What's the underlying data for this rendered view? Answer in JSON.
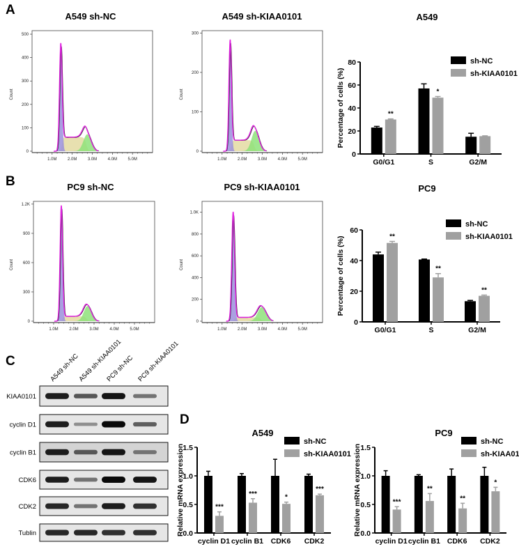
{
  "panel_labels": {
    "a": "A",
    "b": "B",
    "c": "C",
    "d": "D"
  },
  "colors": {
    "sh_nc": "#000000",
    "sh_kiaa0101": "#a0a0a0",
    "hist_outline": "#e020e0",
    "g1_fill": "#9b90dc",
    "s_fill": "#e4dba2",
    "g2_fill": "#8ee27a"
  },
  "chart_data": [
    {
      "id": "hist_a549_nc",
      "type": "area",
      "title": "A549 sh-NC",
      "ylabel": "Count",
      "xlim": [
        0,
        6
      ],
      "ylim": [
        0,
        515
      ],
      "xticks": [
        {
          "v": 1,
          "label": "1.0M"
        },
        {
          "v": 2,
          "label": "2.0M"
        },
        {
          "v": 3,
          "label": "3.0M"
        },
        {
          "v": 4,
          "label": "4.0M"
        },
        {
          "v": 5,
          "label": "5.0M"
        }
      ],
      "yticks": [
        {
          "v": 0,
          "label": "0"
        },
        {
          "v": 100,
          "label": "100"
        },
        {
          "v": 200,
          "label": "200"
        },
        {
          "v": 300,
          "label": "300"
        },
        {
          "v": 400,
          "label": "400"
        },
        {
          "v": 500,
          "label": "500"
        }
      ],
      "g1_peak": {
        "x": 1.43,
        "count": 455
      },
      "g2_peak": {
        "x": 2.75,
        "count": 90
      },
      "s_phase_count": 60
    },
    {
      "id": "hist_a549_kd",
      "type": "area",
      "title": "A549 sh-KIAA0101",
      "ylabel": "Count",
      "xlim": [
        0,
        6
      ],
      "ylim": [
        0,
        306
      ],
      "xticks": [
        {
          "v": 1,
          "label": "1.0M"
        },
        {
          "v": 2,
          "label": "2.0M"
        },
        {
          "v": 3,
          "label": "3.0M"
        },
        {
          "v": 4,
          "label": "4.0M"
        },
        {
          "v": 5,
          "label": "5.0M"
        }
      ],
      "yticks": [
        {
          "v": 0,
          "label": "0"
        },
        {
          "v": 100,
          "label": "100"
        },
        {
          "v": 200,
          "label": "200"
        },
        {
          "v": 300,
          "label": "300"
        }
      ],
      "g1_peak": {
        "x": 1.4,
        "count": 280
      },
      "g2_peak": {
        "x": 2.65,
        "count": 60
      },
      "s_phase_count": 28
    },
    {
      "id": "hist_pc9_nc",
      "type": "area",
      "title": "PC9 sh-NC",
      "ylabel": "Count",
      "xlim": [
        0,
        6
      ],
      "ylim": [
        0,
        1228
      ],
      "xticks": [
        {
          "v": 1,
          "label": "1.0M"
        },
        {
          "v": 2,
          "label": "2.0M"
        },
        {
          "v": 3,
          "label": "3.0M"
        },
        {
          "v": 4,
          "label": "4.0M"
        },
        {
          "v": 5,
          "label": "5.0M"
        }
      ],
      "yticks": [
        {
          "v": 0,
          "label": "0"
        },
        {
          "v": 300,
          "label": "300"
        },
        {
          "v": 600,
          "label": "600"
        },
        {
          "v": 900,
          "label": "900"
        },
        {
          "v": 1200,
          "label": "1.2K"
        }
      ],
      "g1_peak": {
        "x": 1.38,
        "count": 1180
      },
      "g2_peak": {
        "x": 2.68,
        "count": 170
      },
      "s_phase_count": 50
    },
    {
      "id": "hist_pc9_kd",
      "type": "area",
      "title": "PC9 sh-KIAA0101",
      "ylabel": "Count",
      "xlim": [
        0,
        6
      ],
      "ylim": [
        0,
        1100
      ],
      "xticks": [
        {
          "v": 1,
          "label": "1.0M"
        },
        {
          "v": 2,
          "label": "2.0M"
        },
        {
          "v": 3,
          "label": "3.0M"
        },
        {
          "v": 4,
          "label": "4.0M"
        },
        {
          "v": 5,
          "label": "5.0M"
        }
      ],
      "yticks": [
        {
          "v": 0,
          "label": "0"
        },
        {
          "v": 200,
          "label": "200"
        },
        {
          "v": 400,
          "label": "400"
        },
        {
          "v": 600,
          "label": "600"
        },
        {
          "v": 800,
          "label": "800"
        },
        {
          "v": 1000,
          "label": "1.0K"
        }
      ],
      "g1_peak": {
        "x": 1.55,
        "count": 1000
      },
      "g2_peak": {
        "x": 2.98,
        "count": 140
      },
      "s_phase_count": 35
    },
    {
      "id": "bar_a549",
      "type": "bar",
      "title": "A549",
      "ylabel": "Percentage of cells (%)",
      "ylim": [
        0,
        80
      ],
      "yticks": [
        {
          "v": 0,
          "label": "0"
        },
        {
          "v": 20,
          "label": "20"
        },
        {
          "v": 40,
          "label": "40"
        },
        {
          "v": 60,
          "label": "60"
        },
        {
          "v": 80,
          "label": "80"
        }
      ],
      "categories": [
        "G0/G1",
        "S",
        "G2/M"
      ],
      "legend": "top-right",
      "series": [
        {
          "name": "sh-NC",
          "values": [
            23,
            57,
            15
          ],
          "errors": [
            1,
            4,
            3
          ],
          "significance": [
            "",
            "",
            ""
          ]
        },
        {
          "name": "sh-KIAA0101",
          "values": [
            30,
            49,
            15.5
          ],
          "errors": [
            0.5,
            1,
            0.3
          ],
          "significance": [
            "**",
            "*",
            ""
          ]
        }
      ]
    },
    {
      "id": "bar_pc9",
      "type": "bar",
      "title": "PC9",
      "ylabel": "Percentage of cells (%)",
      "ylim": [
        0,
        60
      ],
      "yticks": [
        {
          "v": 0,
          "label": "0"
        },
        {
          "v": 20,
          "label": "20"
        },
        {
          "v": 40,
          "label": "40"
        },
        {
          "v": 60,
          "label": "60"
        }
      ],
      "categories": [
        "G0/G1",
        "S",
        "G2/M"
      ],
      "legend": "top-right",
      "series": [
        {
          "name": "sh-NC",
          "values": [
            44,
            40.7,
            13.5
          ],
          "errors": [
            1.5,
            0.3,
            0.5
          ],
          "significance": [
            "",
            "",
            ""
          ]
        },
        {
          "name": "sh-KIAA0101",
          "values": [
            51.5,
            29,
            17
          ],
          "errors": [
            1,
            2.5,
            0.5
          ],
          "significance": [
            "**",
            "**",
            "**"
          ]
        }
      ]
    },
    {
      "id": "mrna_a549",
      "type": "bar",
      "title": "A549",
      "ylabel": "Relative mRNA expression",
      "ylim": [
        0,
        1.5
      ],
      "yticks": [
        {
          "v": 0,
          "label": "0.0"
        },
        {
          "v": 0.5,
          "label": "0.5"
        },
        {
          "v": 1,
          "label": "1.0"
        },
        {
          "v": 1.5,
          "label": "1.5"
        }
      ],
      "categories": [
        "cyclin D1",
        "cyclin B1",
        "CDK6",
        "CDK2"
      ],
      "legend": "top-right",
      "series": [
        {
          "name": "sh-NC",
          "values": [
            1.0,
            1.0,
            1.0,
            1.0
          ],
          "errors": [
            0.08,
            0.04,
            0.29,
            0.03
          ],
          "significance": [
            "",
            "",
            "",
            ""
          ]
        },
        {
          "name": "sh-KIAA0101",
          "values": [
            0.3,
            0.53,
            0.51,
            0.66
          ],
          "errors": [
            0.07,
            0.07,
            0.03,
            0.02
          ],
          "significance": [
            "***",
            "***",
            "*",
            "***"
          ]
        }
      ]
    },
    {
      "id": "mrna_pc9",
      "type": "bar",
      "title": "PC9",
      "ylabel": "Relative mRNA expression",
      "ylim": [
        0,
        1.5
      ],
      "yticks": [
        {
          "v": 0,
          "label": "0.0"
        },
        {
          "v": 0.5,
          "label": "0.5"
        },
        {
          "v": 1,
          "label": "1.0"
        },
        {
          "v": 1.5,
          "label": "1.5"
        }
      ],
      "categories": [
        "cyclin D1",
        "cyclin B1",
        "CDK6",
        "CDK2"
      ],
      "legend": "top-right",
      "series": [
        {
          "name": "sh-NC",
          "values": [
            1.0,
            1.0,
            1.0,
            1.0
          ],
          "errors": [
            0.09,
            0.02,
            0.12,
            0.15
          ],
          "significance": [
            "",
            "",
            "",
            ""
          ]
        },
        {
          "name": "sh-KIAA0101",
          "values": [
            0.41,
            0.56,
            0.43,
            0.73
          ],
          "errors": [
            0.05,
            0.13,
            0.09,
            0.07
          ],
          "significance": [
            "***",
            "**",
            "**",
            "*"
          ]
        }
      ]
    }
  ],
  "western_blot": {
    "lanes": [
      "A549 sh-NC",
      "A549 sh-KIAA0101",
      "PC9 sh-NC",
      "PC9 sh-KIAA0101"
    ],
    "rows": [
      {
        "label": "KIAA0101",
        "intensity": [
          0.9,
          0.6,
          0.95,
          0.45
        ]
      },
      {
        "label": "cyclin D1",
        "intensity": [
          0.9,
          0.3,
          1.0,
          0.55
        ]
      },
      {
        "label": "cyclin B1",
        "intensity": [
          0.9,
          0.6,
          0.95,
          0.45
        ]
      },
      {
        "label": "CDK6",
        "intensity": [
          0.9,
          0.45,
          1.0,
          0.95
        ]
      },
      {
        "label": "CDK2",
        "intensity": [
          0.85,
          0.45,
          0.9,
          0.8
        ]
      },
      {
        "label": "Tublin",
        "intensity": [
          0.85,
          0.85,
          0.8,
          0.8
        ]
      }
    ]
  }
}
